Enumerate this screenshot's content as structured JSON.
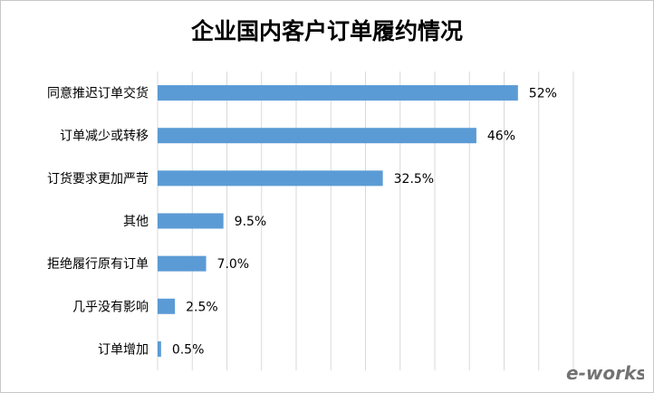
{
  "chart_data": {
    "type": "bar",
    "orientation": "horizontal",
    "title": "企业国内客户订单履约情况",
    "categories": [
      "同意推迟订单交货",
      "订单减少或转移",
      "订货要求更加严苛",
      "其他",
      "拒绝履行原有订单",
      "几乎没有影响",
      "订单增加"
    ],
    "values": [
      52,
      46,
      32.5,
      9.5,
      7.0,
      2.5,
      0.5
    ],
    "value_labels": [
      "52%",
      "46%",
      "32.5%",
      "9.5%",
      "7.0%",
      "2.5%",
      "0.5%"
    ],
    "xlim": [
      0,
      60
    ],
    "grid": "vertical",
    "legend": "none",
    "bar_color": "#5b9bd5"
  },
  "watermark": {
    "text": "e-works",
    "color": "#f0a33c"
  }
}
